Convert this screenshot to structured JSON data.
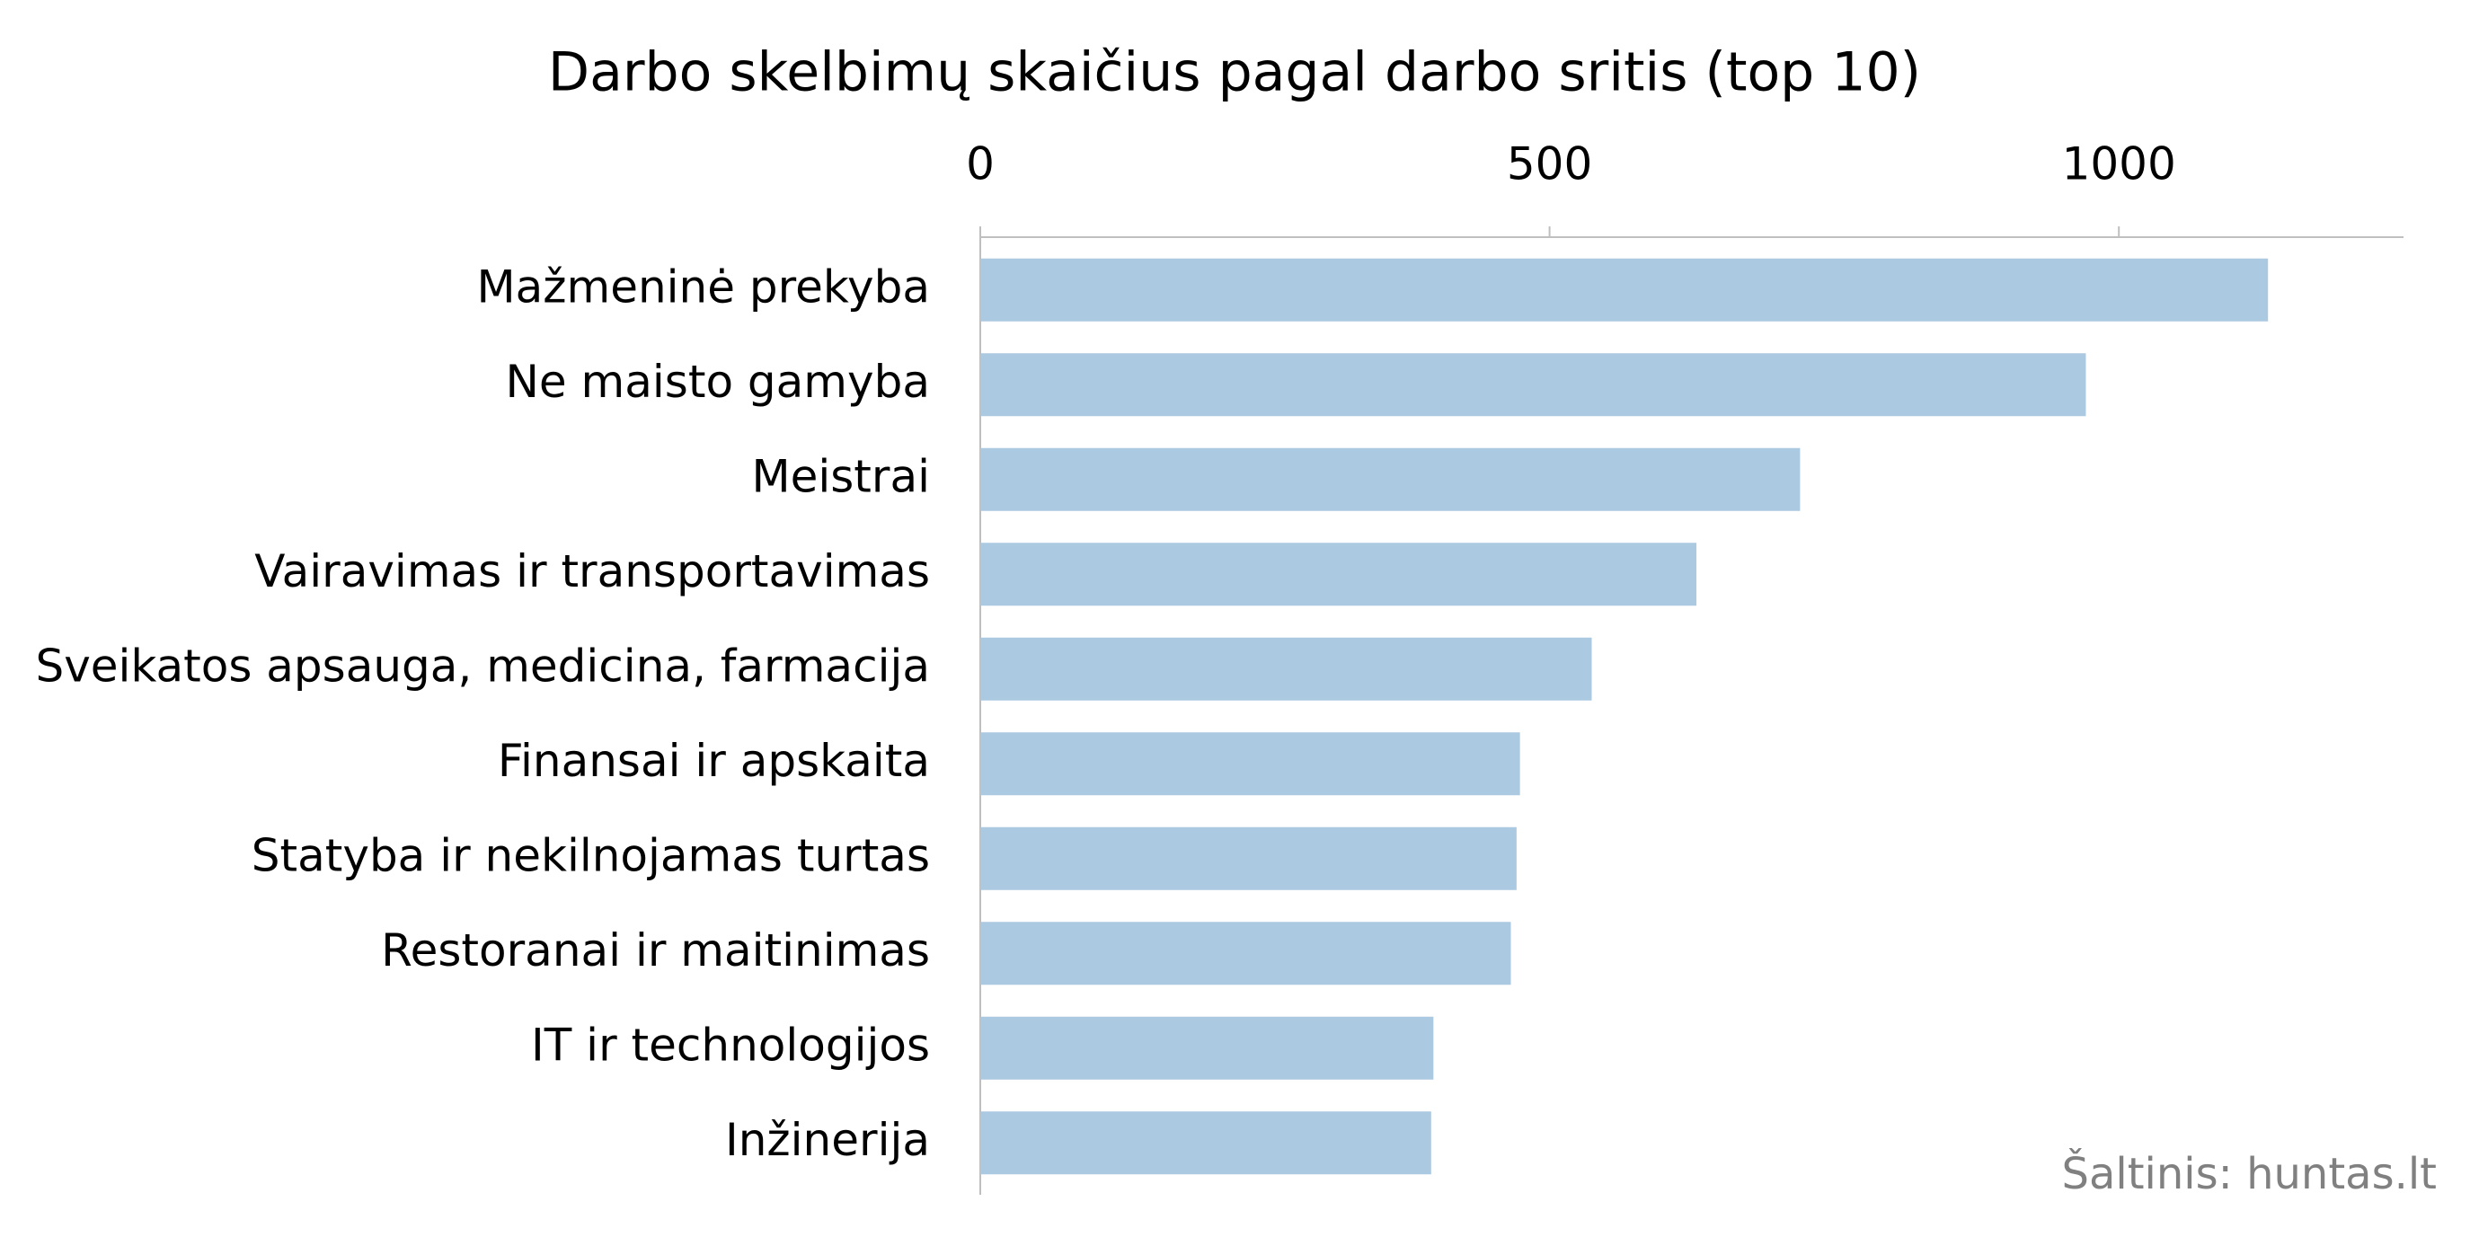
{
  "chart_data": {
    "type": "bar",
    "orientation": "horizontal",
    "title": "Darbo skelbimų skaičius pagal darbo sritis (top 10)",
    "source": "Šaltinis: huntas.lt",
    "categories": [
      "Mažmeninė prekyba",
      "Ne maisto gamyba",
      "Meistrai",
      "Vairavimas ir transportavimas",
      "Sveikatos apsauga, medicina, farmacija",
      "Finansai ir apskaita",
      "Statyba ir nekilnojamas turtas",
      "Restoranai ir maitinimas",
      "IT ir technologijos",
      "Inžinerija"
    ],
    "values": [
      1131,
      971,
      720,
      629,
      537,
      474,
      471,
      466,
      398,
      396
    ],
    "color": "#abc9e0",
    "xlim": [
      0,
      1250
    ],
    "xticks": [
      0,
      500,
      1000
    ],
    "grid": false
  }
}
